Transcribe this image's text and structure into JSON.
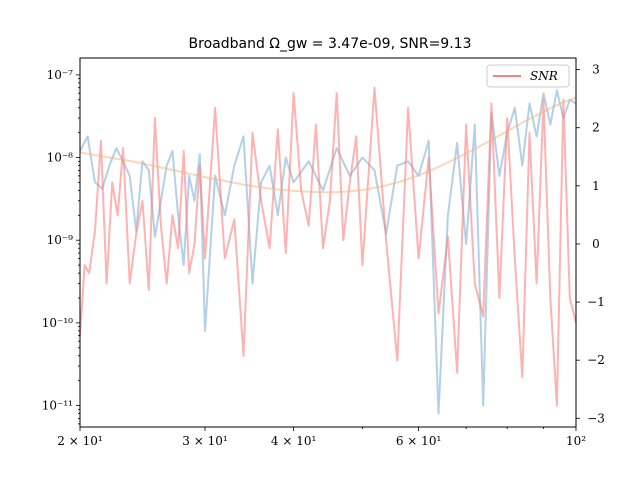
{
  "chart_data": {
    "type": "line",
    "title": "Broadband Ω_gw = 3.47e-09, SNR=9.13",
    "xscale": "log",
    "yscale": "log",
    "xlim": [
      20,
      100
    ],
    "ylim": [
      5.5e-12,
      1.6e-07
    ],
    "ylim_right": [
      -3.15,
      3.2
    ],
    "grid": false,
    "legend": {
      "position": "top-right",
      "entries": [
        {
          "label": "SNR",
          "color": "#ff7f7f"
        }
      ]
    },
    "x_ticks": [
      {
        "value": 20,
        "label": "2 × 10¹"
      },
      {
        "value": 30,
        "label": "3 × 10¹"
      },
      {
        "value": 40,
        "label": "4 × 10¹"
      },
      {
        "value": 60,
        "label": "6 × 10¹"
      },
      {
        "value": 100,
        "label": "10²"
      }
    ],
    "y_ticks_left": [
      {
        "value": 1e-11,
        "label": "10⁻¹¹"
      },
      {
        "value": 1e-10,
        "label": "10⁻¹⁰"
      },
      {
        "value": 1e-09,
        "label": "10⁻⁹"
      },
      {
        "value": 1e-08,
        "label": "10⁻⁸"
      },
      {
        "value": 1e-07,
        "label": "10⁻⁷"
      }
    ],
    "y_ticks_right": [
      {
        "value": -3,
        "label": "−3"
      },
      {
        "value": -2,
        "label": "−2"
      },
      {
        "value": -1,
        "label": "−1"
      },
      {
        "value": 0,
        "label": "0"
      },
      {
        "value": 1,
        "label": "1"
      },
      {
        "value": 2,
        "label": "2"
      },
      {
        "value": 3,
        "label": "3"
      }
    ],
    "series": [
      {
        "color": "#a6c8e3",
        "axis": "left",
        "x": [
          20,
          20.5,
          21,
          21.5,
          22,
          22.5,
          23,
          23.5,
          24,
          24.5,
          25,
          25.5,
          26,
          26.5,
          27,
          27.5,
          28,
          28.5,
          29,
          29.5,
          30,
          31,
          32,
          33,
          34,
          35,
          36,
          37,
          38,
          39,
          40,
          42,
          44,
          46,
          48,
          50,
          52,
          54,
          56,
          58,
          60,
          62,
          64,
          66,
          68,
          70,
          72,
          74,
          76,
          78,
          80,
          82,
          84,
          86,
          88,
          90,
          92,
          94,
          96,
          98,
          100
        ],
        "y": [
          1.2e-08,
          1.8e-08,
          5e-09,
          4.2e-09,
          8e-09,
          1.3e-08,
          9e-09,
          6e-09,
          1.3e-09,
          9e-09,
          7e-09,
          1.1e-09,
          3e-09,
          8e-09,
          1.2e-08,
          2e-09,
          5e-10,
          6e-09,
          3e-09,
          1.1e-08,
          8e-11,
          6e-09,
          2e-09,
          8e-09,
          1.8e-08,
          3e-10,
          5e-09,
          8e-09,
          2e-09,
          1e-08,
          5e-09,
          9e-09,
          4e-09,
          1.3e-08,
          6e-09,
          1e-08,
          7e-09,
          1.2e-09,
          8e-09,
          9e-09,
          6e-09,
          1.6e-08,
          8e-12,
          2e-09,
          1.5e-08,
          9e-10,
          2.5e-08,
          1e-11,
          3.5e-08,
          6e-09,
          2e-08,
          4e-08,
          8e-09,
          4.5e-08,
          1.8e-08,
          6e-08,
          2.5e-08,
          6.5e-08,
          3e-08,
          5e-08,
          4.5e-08
        ]
      },
      {
        "color": "#ff7f7f",
        "axis": "left",
        "x": [
          20,
          20.3,
          20.6,
          21,
          21.4,
          21.8,
          22.2,
          22.6,
          23,
          23.5,
          24,
          24.5,
          25,
          25.5,
          26,
          26.5,
          27,
          27.5,
          28,
          28.5,
          29,
          29.5,
          30,
          31,
          32,
          33,
          34,
          35,
          36,
          37,
          38,
          39,
          40,
          41,
          42,
          43,
          44,
          45,
          46,
          47,
          48,
          49,
          50,
          52,
          54,
          56,
          58,
          60,
          62,
          64,
          66,
          68,
          70,
          72,
          74,
          76,
          78,
          80,
          82,
          84,
          86,
          88,
          90,
          92,
          94,
          96,
          98,
          100
        ],
        "y": [
          7e-11,
          5e-10,
          4e-10,
          1.3e-09,
          1.6e-08,
          3e-10,
          5e-09,
          2e-09,
          1.3e-08,
          3e-10,
          1.2e-09,
          3e-09,
          2.5e-10,
          3e-08,
          1.5e-09,
          3e-10,
          2e-09,
          8e-10,
          1.2e-08,
          4e-10,
          9e-10,
          8e-09,
          6e-10,
          4e-08,
          6e-10,
          1.8e-09,
          4e-11,
          2e-08,
          3e-09,
          8e-10,
          2.2e-08,
          7e-10,
          6e-08,
          4e-09,
          1.5e-09,
          2.5e-08,
          8e-10,
          3e-09,
          6e-08,
          1e-09,
          5e-09,
          1.8e-08,
          5e-10,
          7e-08,
          1e-09,
          3.5e-11,
          4e-08,
          6e-10,
          1e-08,
          1.3e-10,
          1.1e-09,
          2.5e-11,
          2.5e-08,
          3e-10,
          1.2e-10,
          4.5e-08,
          2e-10,
          3e-08,
          6e-10,
          2.2e-11,
          2e-08,
          3e-10,
          5e-08,
          2e-10,
          1e-11,
          5e-08,
          2e-10,
          1e-10
        ]
      },
      {
        "color": "#f3b27e",
        "axis": "left",
        "x": [
          20,
          22,
          24,
          26,
          28,
          30,
          32,
          34,
          36,
          38,
          40,
          42,
          44,
          46,
          48,
          50,
          52,
          54,
          56,
          58,
          60,
          62,
          64,
          66,
          68,
          70,
          72,
          74,
          76,
          78,
          80,
          82,
          84,
          86,
          88,
          90,
          92,
          94,
          96,
          98,
          100
        ],
        "y": [
          1.15e-08,
          1e-08,
          8.8e-09,
          7.6e-09,
          6.6e-09,
          5.8e-09,
          5.2e-09,
          4.7e-09,
          4.35e-09,
          4.1e-09,
          3.95e-09,
          3.85e-09,
          3.8e-09,
          3.82e-09,
          3.9e-09,
          4.05e-09,
          4.3e-09,
          4.6e-09,
          5e-09,
          5.5e-09,
          6.1e-09,
          6.8e-09,
          7.7e-09,
          8.7e-09,
          9.9e-09,
          1.12e-08,
          1.27e-08,
          1.44e-08,
          1.63e-08,
          1.85e-08,
          2.08e-08,
          2.35e-08,
          2.63e-08,
          2.93e-08,
          3.25e-08,
          3.6e-08,
          3.95e-08,
          4.3e-08,
          4.65e-08,
          5e-08,
          5.3e-08
        ]
      }
    ]
  }
}
